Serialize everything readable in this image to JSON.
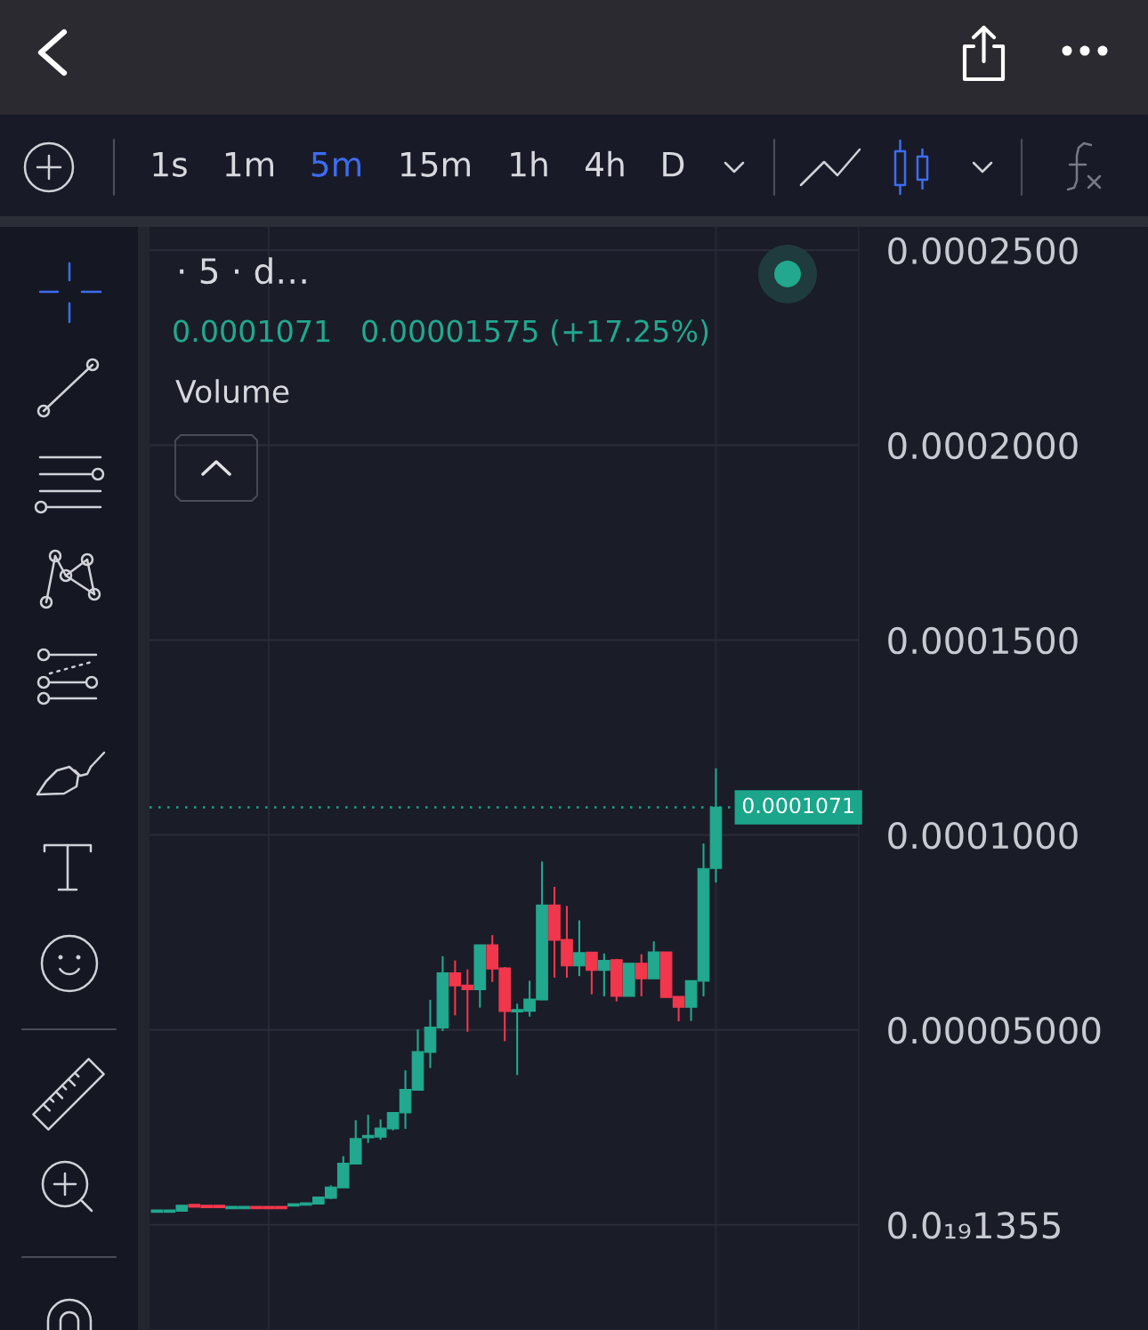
{
  "chart_data": {
    "type": "candlestick",
    "categories": [
      null,
      null,
      null,
      null,
      null,
      null,
      null,
      null,
      null,
      null,
      null,
      null,
      null,
      null,
      null,
      null,
      null,
      null,
      null,
      null,
      null,
      null,
      null,
      null,
      null,
      null,
      null,
      null,
      null,
      null,
      null,
      null,
      null,
      null,
      null,
      null,
      null,
      null,
      null,
      null,
      null,
      null,
      null,
      null,
      null,
      null
    ],
    "ohlc": [
      [
        3.2e-06,
        3.8e-06,
        3.2e-06,
        3.8e-06
      ],
      [
        3.2e-06,
        3.8e-06,
        3.2e-06,
        3.8e-06
      ],
      [
        3.5e-06,
        5e-06,
        3.5e-06,
        5e-06
      ],
      [
        5.2e-06,
        5.2e-06,
        4.5e-06,
        4.5e-06
      ],
      [
        5e-06,
        5e-06,
        4.4e-06,
        4.4e-06
      ],
      [
        5e-06,
        5e-06,
        4.4e-06,
        4.4e-06
      ],
      [
        4.1e-06,
        4.7e-06,
        4.1e-06,
        4.7e-06
      ],
      [
        4.1e-06,
        4.7e-06,
        4.1e-06,
        4.7e-06
      ],
      [
        4.7e-06,
        4.7e-06,
        4.1e-06,
        4.1e-06
      ],
      [
        4.7e-06,
        4.7e-06,
        4.1e-06,
        4.1e-06
      ],
      [
        4.7e-06,
        4.7e-06,
        4.1e-06,
        4.1e-06
      ],
      [
        4.8e-06,
        5.4e-06,
        4.8e-06,
        5.4e-06
      ],
      [
        5e-06,
        5.6e-06,
        5e-06,
        5.6e-06
      ],
      [
        5.3e-06,
        7.1e-06,
        5.3e-06,
        7.1e-06
      ],
      [
        6.8e-06,
        1.01e-05,
        6.6e-06,
        9.7e-06
      ],
      [
        9.5e-06,
        1.76e-05,
        9.5e-06,
        1.58e-05
      ],
      [
        1.56e-05,
        2.68e-05,
        1.56e-05,
        2.21e-05
      ],
      [
        2.23e-05,
        2.82e-05,
        2.1e-05,
        2.29e-05
      ],
      [
        2.25e-05,
        2.7e-05,
        2.18e-05,
        2.48e-05
      ],
      [
        2.46e-05,
        2.88e-05,
        2.42e-05,
        2.88e-05
      ],
      [
        2.87e-05,
        3.96e-05,
        2.46e-05,
        3.47e-05
      ],
      [
        3.45e-05,
        5.01e-05,
        3.45e-05,
        4.44e-05
      ],
      [
        4.42e-05,
        5.77e-05,
        4.02e-05,
        5.07e-05
      ],
      [
        5.05e-05,
        6.89e-05,
        4.97e-05,
        6.46e-05
      ],
      [
        6.46e-05,
        6.78e-05,
        5.37e-05,
        6.13e-05
      ],
      [
        6.15e-05,
        6.55e-05,
        4.95e-05,
        6.03e-05
      ],
      [
        6.03e-05,
        7.18e-05,
        5.57e-05,
        7.18e-05
      ],
      [
        7.18e-05,
        7.43e-05,
        6.23e-05,
        6.56e-05
      ],
      [
        6.59e-05,
        6.61e-05,
        4.71e-05,
        5.47e-05
      ],
      [
        5.46e-05,
        5.67e-05,
        3.84e-05,
        5.52e-05
      ],
      [
        5.48e-05,
        6.26e-05,
        5.34e-05,
        5.79e-05
      ],
      [
        5.77e-05,
        9.32e-05,
        5.76e-05,
        8.2e-05
      ],
      [
        8.2e-05,
        8.67e-05,
        6.34e-05,
        7.3e-05
      ],
      [
        7.32e-05,
        8.18e-05,
        6.34e-05,
        6.64e-05
      ],
      [
        6.64e-05,
        7.81e-05,
        6.38e-05,
        6.98e-05
      ],
      [
        6.99e-05,
        7e-05,
        5.91e-05,
        6.53e-05
      ],
      [
        6.53e-05,
        6.96e-05,
        5.86e-05,
        6.78e-05
      ],
      [
        6.8e-05,
        6.82e-05,
        5.73e-05,
        5.86e-05
      ],
      [
        5.86e-05,
        6.71e-05,
        5.86e-05,
        6.71e-05
      ],
      [
        6.71e-05,
        6.94e-05,
        5.86e-05,
        6.31e-05
      ],
      [
        6.31e-05,
        7.27e-05,
        6.31e-05,
        7e-05
      ],
      [
        7e-05,
        7e-05,
        5.83e-05,
        5.83e-05
      ],
      [
        5.86e-05,
        5.86e-05,
        5.22e-05,
        5.58e-05
      ],
      [
        5.58e-05,
        6.26e-05,
        5.23e-05,
        6.26e-05
      ],
      [
        6.25e-05,
        9.78e-05,
        5.86e-05,
        9.14e-05
      ],
      [
        9.14e-05,
        0.0001171,
        8.78e-05,
        0.0001071
      ]
    ],
    "colors": [
      "#22a88e",
      "#22a88e",
      "#22a88e",
      "#f2374c",
      "#f2374c",
      "#f2374c",
      "#22a88e",
      "#22a88e",
      "#f2374c",
      "#f2374c",
      "#f2374c",
      "#22a88e",
      "#22a88e",
      "#22a88e",
      "#22a88e",
      "#22a88e",
      "#22a88e",
      "#22a88e",
      "#22a88e",
      "#22a88e",
      "#22a88e",
      "#22a88e",
      "#22a88e",
      "#22a88e",
      "#f2374c",
      "#f2374c",
      "#22a88e",
      "#f2374c",
      "#f2374c",
      "#22a88e",
      "#22a88e",
      "#22a88e",
      "#f2374c",
      "#f2374c",
      "#22a88e",
      "#f2374c",
      "#22a88e",
      "#f2374c",
      "#22a88e",
      "#f2374c",
      "#22a88e",
      "#f2374c",
      "#f2374c",
      "#22a88e",
      "#22a88e",
      "#22a88e"
    ],
    "ylim": [
      -2.7e-05,
      0.000256
    ],
    "yticks": [
      {
        "value": 1.355e-20,
        "label": "0.0₁₉1355"
      },
      {
        "value": 5e-05,
        "label": "0.00005000"
      },
      {
        "value": 0.0001,
        "label": "0.0001000"
      },
      {
        "value": 0.00015,
        "label": "0.0001500"
      },
      {
        "value": 0.0002,
        "label": "0.0002000"
      },
      {
        "value": 0.00025,
        "label": "0.0002500"
      }
    ],
    "grid": "y",
    "tick_labels": "y",
    "ref_lines": [
      {
        "axis": "y",
        "value": 0.0001071,
        "label": "0.0001071",
        "color": "#1ba58b",
        "line_style": "dotted"
      }
    ],
    "annotations": [
      "1s",
      "1m",
      "5m",
      "15m",
      "1h",
      "4h",
      "D",
      "· 5 · d…",
      "0.0001071",
      "0.00001575 (+17.25%)",
      "Volume"
    ]
  }
}
